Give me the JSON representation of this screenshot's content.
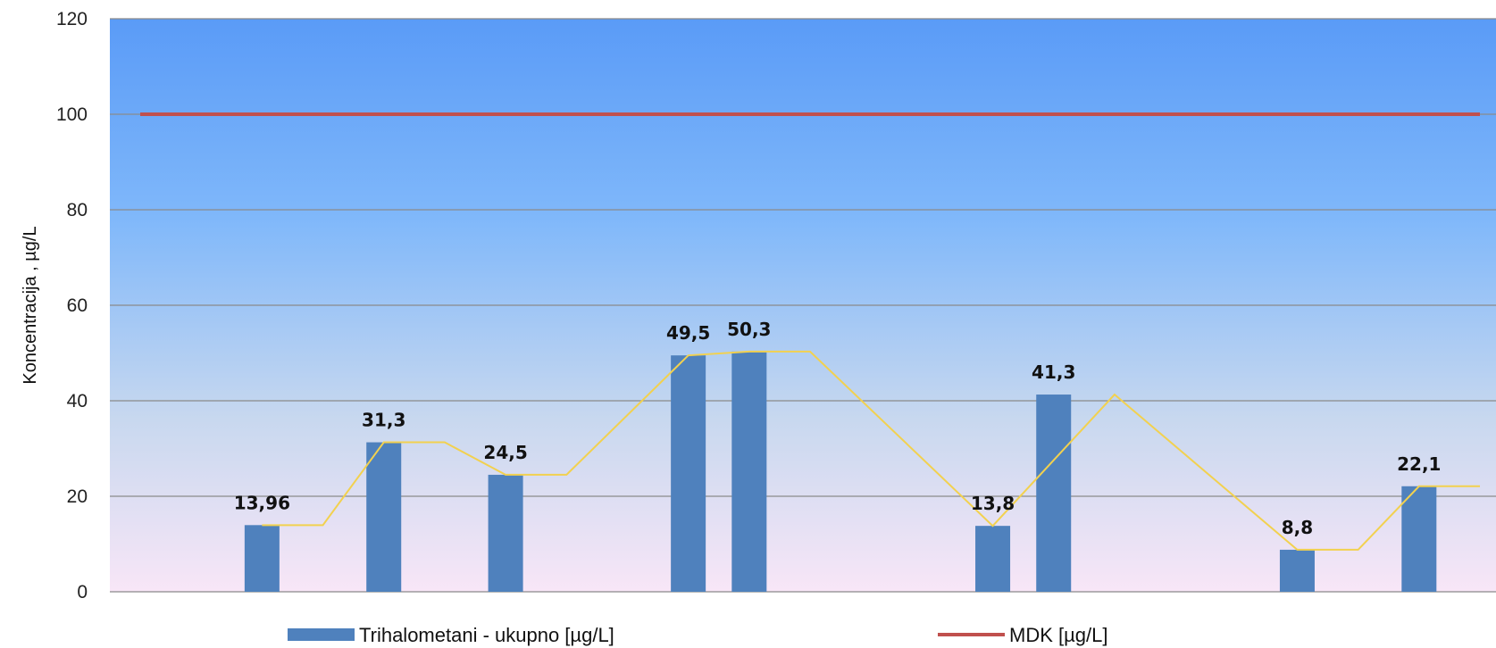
{
  "chart_data": {
    "type": "bar",
    "title": "",
    "xlabel": "",
    "ylabel": "Koncentracija , µg/L",
    "ylim": [
      0,
      120
    ],
    "yticks": [
      0,
      20,
      40,
      60,
      80,
      100,
      120
    ],
    "grid": true,
    "legend_position": "bottom",
    "x_range": [
      0,
      22
    ],
    "series": [
      {
        "name": "Trihalometani - ukupno [µg/L]",
        "type": "bar",
        "color": "#4f81bd",
        "points": [
          {
            "x": 2,
            "y": 13.96,
            "label": "13,96"
          },
          {
            "x": 4,
            "y": 31.3,
            "label": "31,3"
          },
          {
            "x": 6,
            "y": 24.5,
            "label": "24,5"
          },
          {
            "x": 9,
            "y": 49.5,
            "label": "49,5"
          },
          {
            "x": 10,
            "y": 50.3,
            "label": "50,3"
          },
          {
            "x": 14,
            "y": 13.8,
            "label": "13,8"
          },
          {
            "x": 15,
            "y": 41.3,
            "label": "41,3"
          },
          {
            "x": 19,
            "y": 8.8,
            "label": "8,8"
          },
          {
            "x": 21,
            "y": 22.1,
            "label": "22,1"
          }
        ]
      },
      {
        "name": "MDK [µg/L]",
        "type": "line",
        "color": "#c0504d",
        "x": [
          0,
          22
        ],
        "values": [
          100,
          100
        ]
      },
      {
        "name": "",
        "type": "line",
        "color": "#f2d14f",
        "x": [
          2,
          3,
          4,
          5,
          6,
          7,
          9,
          10,
          11,
          14,
          16,
          19,
          20,
          21,
          22
        ],
        "values": [
          13.96,
          13.96,
          31.3,
          31.3,
          24.5,
          24.5,
          49.5,
          50.3,
          50.3,
          13.8,
          41.3,
          8.8,
          8.8,
          22.1,
          22.1
        ]
      }
    ]
  }
}
